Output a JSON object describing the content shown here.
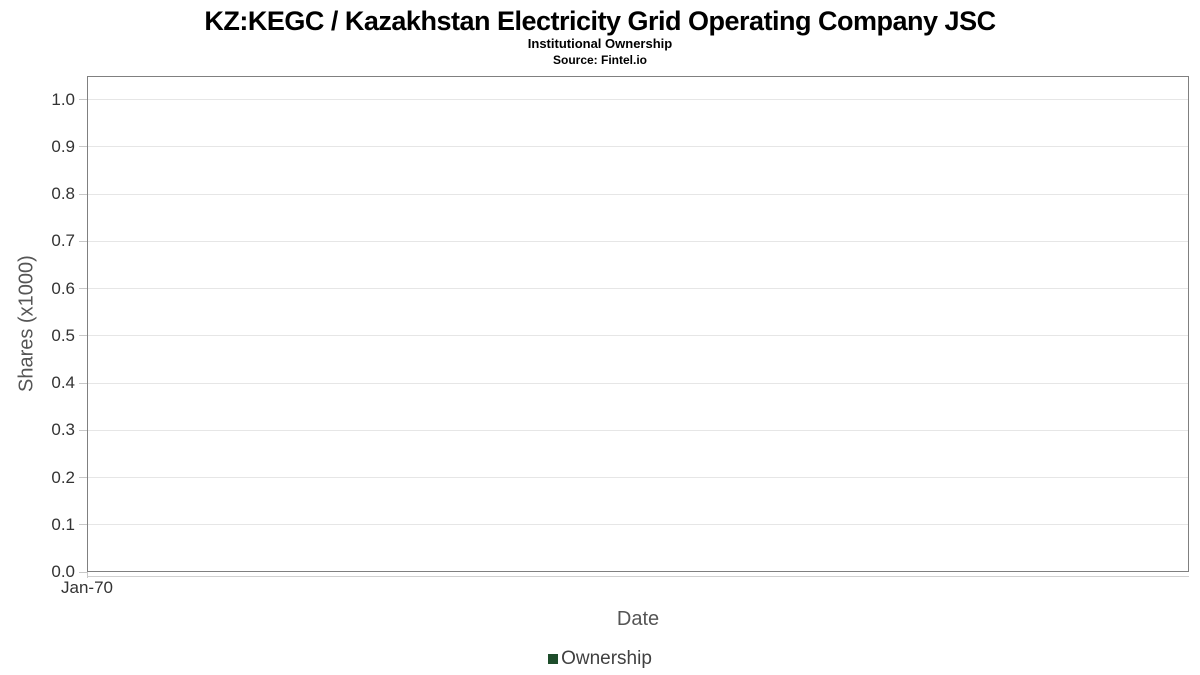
{
  "chart_data": {
    "type": "line",
    "title": "KZ:KEGC / Kazakhstan Electricity Grid Operating Company JSC",
    "subtitle": "Institutional Ownership",
    "source": "Source: Fintel.io",
    "xlabel": "Date",
    "ylabel": "Shares (x1000)",
    "xticks": [
      "Jan-70"
    ],
    "yticks": [
      {
        "label": "0.0",
        "value": 0.0
      },
      {
        "label": "0.1",
        "value": 0.1
      },
      {
        "label": "0.2",
        "value": 0.2
      },
      {
        "label": "0.3",
        "value": 0.3
      },
      {
        "label": "0.4",
        "value": 0.4
      },
      {
        "label": "0.5",
        "value": 0.5
      },
      {
        "label": "0.6",
        "value": 0.6
      },
      {
        "label": "0.7",
        "value": 0.7
      },
      {
        "label": "0.8",
        "value": 0.8
      },
      {
        "label": "0.9",
        "value": 0.9
      },
      {
        "label": "1.0",
        "value": 1.0
      }
    ],
    "ylim": [
      0,
      1.05
    ],
    "xlim_labels": [
      "Jan-70"
    ],
    "grid": "horizontal",
    "legend_position": "bottom-center",
    "series": [
      {
        "name": "Ownership",
        "color": "#1e4d2b",
        "x": [],
        "values": []
      }
    ],
    "colors": {
      "background": "#ffffff",
      "title": "#000000",
      "plot_border": "#808080",
      "gridline": "#e6e6e6",
      "tick": "#c8c8c8",
      "axis_line": "#d0d0d0",
      "tick_label": "#333333",
      "axis_title": "#555555",
      "legend_text": "#404040",
      "accent_green": "#1e4d2b"
    }
  }
}
